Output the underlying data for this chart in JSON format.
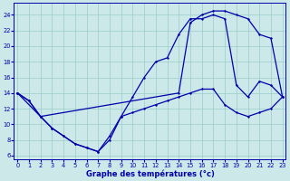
{
  "title": "Graphe des températures (°c)",
  "bg_color": "#cce8e8",
  "grid_color": "#99cccc",
  "line_color": "#0000aa",
  "x_ticks": [
    0,
    1,
    2,
    3,
    4,
    5,
    6,
    7,
    8,
    9,
    10,
    11,
    12,
    13,
    14,
    15,
    16,
    17,
    18,
    19,
    20,
    21,
    22,
    23
  ],
  "y_ticks": [
    6,
    8,
    10,
    12,
    14,
    16,
    18,
    20,
    22,
    24
  ],
  "xlim": [
    -0.3,
    23.3
  ],
  "ylim": [
    5.5,
    25.5
  ],
  "line1_x": [
    0,
    1,
    2,
    3,
    4,
    5,
    6,
    7,
    8,
    9,
    10,
    11,
    12,
    13,
    14,
    15,
    16,
    17,
    18,
    19,
    20,
    21,
    22,
    23
  ],
  "line1_y": [
    14,
    13,
    11,
    9.5,
    8.5,
    7.5,
    7.0,
    6.5,
    8.0,
    11.0,
    11.5,
    12.0,
    12.5,
    13.0,
    13.5,
    14.0,
    14.5,
    14.5,
    12.5,
    11.5,
    11.0,
    11.5,
    12.0,
    13.5
  ],
  "line2_x": [
    0,
    1,
    2,
    3,
    4,
    5,
    6,
    7,
    8,
    9,
    10,
    11,
    12,
    13,
    14,
    15,
    16,
    17,
    18,
    19,
    20,
    21,
    22,
    23
  ],
  "line2_y": [
    14,
    13,
    11,
    9.5,
    8.5,
    7.5,
    7.0,
    6.5,
    8.5,
    11.0,
    13.5,
    16.0,
    18.0,
    18.5,
    21.5,
    23.5,
    23.5,
    24.0,
    23.5,
    15.0,
    13.5,
    15.5,
    15.0,
    13.5
  ],
  "line3_x": [
    0,
    2,
    14,
    15,
    16,
    17,
    18,
    19,
    20,
    21,
    22,
    23
  ],
  "line3_y": [
    14,
    11,
    14,
    23.0,
    24.0,
    24.5,
    24.5,
    24.0,
    23.5,
    21.5,
    21.0,
    13.5
  ]
}
